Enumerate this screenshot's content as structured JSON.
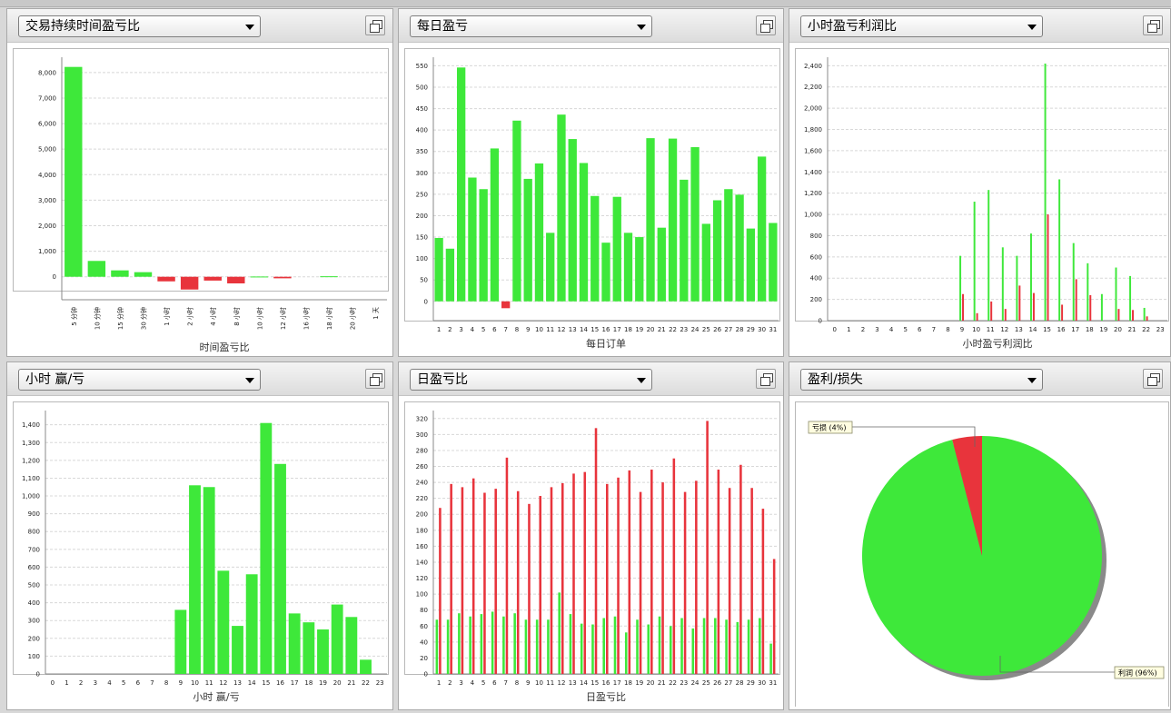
{
  "colors": {
    "profit": "#3ee83a",
    "loss": "#e8343c",
    "grid": "#d8d8d8",
    "axis": "#888888",
    "plot_border": "#b8b8b8"
  },
  "panels": {
    "p1": {
      "dropdown": "交易持续时间盈亏比"
    },
    "p2": {
      "dropdown": "每日盈亏"
    },
    "p3": {
      "dropdown": "小时盈亏利润比"
    },
    "p4": {
      "dropdown": "小时 赢/亏"
    },
    "p5": {
      "dropdown": "日盈亏比"
    },
    "p6": {
      "dropdown": "盈利/损失"
    }
  },
  "chart_data": [
    {
      "id": "duration",
      "type": "bar",
      "xlabel": "时间盈亏比",
      "ylim": [
        -900,
        8600
      ],
      "yticks": [
        0,
        1000,
        2000,
        3000,
        4000,
        5000,
        6000,
        7000,
        8000
      ],
      "categories": [
        "5 分钟",
        "10 分钟",
        "15 分钟",
        "30 分钟",
        "1 小时",
        "2 小时",
        "4 小时",
        "8 小时",
        "10 小时",
        "12 小时",
        "16 小时",
        "18 小时",
        "20 小时",
        "1 天"
      ],
      "values": [
        8220,
        620,
        250,
        180,
        -180,
        -500,
        -150,
        -260,
        10,
        -60,
        0,
        20,
        0,
        0
      ]
    },
    {
      "id": "daily",
      "type": "bar",
      "xlabel": "每日订单",
      "ylim": [
        -45,
        570
      ],
      "yticks": [
        0,
        50,
        100,
        150,
        200,
        250,
        300,
        350,
        400,
        450,
        500,
        550
      ],
      "categories": [
        "1",
        "2",
        "3",
        "4",
        "5",
        "6",
        "7",
        "8",
        "9",
        "10",
        "11",
        "12",
        "13",
        "14",
        "15",
        "16",
        "17",
        "18",
        "19",
        "20",
        "21",
        "22",
        "23",
        "24",
        "25",
        "26",
        "27",
        "28",
        "29",
        "30",
        "31"
      ],
      "values": [
        148,
        123,
        546,
        289,
        262,
        357,
        -16,
        422,
        286,
        322,
        160,
        436,
        379,
        323,
        246,
        137,
        244,
        160,
        150,
        381,
        172,
        380,
        284,
        360,
        181,
        236,
        262,
        249,
        170,
        338,
        183
      ]
    },
    {
      "id": "hourly_ratio",
      "type": "bar",
      "xlabel": "小时盈亏利润比",
      "ylim": [
        0,
        2480
      ],
      "yticks": [
        0,
        200,
        400,
        600,
        800,
        1000,
        1200,
        1400,
        1600,
        1800,
        2000,
        2200,
        2400
      ],
      "categories": [
        "0",
        "1",
        "2",
        "3",
        "4",
        "5",
        "6",
        "7",
        "8",
        "9",
        "10",
        "11",
        "12",
        "13",
        "14",
        "15",
        "16",
        "17",
        "18",
        "19",
        "20",
        "21",
        "22",
        "23"
      ],
      "series": [
        {
          "name": "",
          "color": "profit",
          "values": [
            0,
            0,
            0,
            0,
            0,
            0,
            0,
            0,
            0,
            610,
            1120,
            1230,
            690,
            610,
            820,
            2420,
            1330,
            730,
            540,
            250,
            500,
            420,
            120,
            0
          ]
        },
        {
          "name": "",
          "color": "loss",
          "values": [
            0,
            0,
            0,
            0,
            0,
            0,
            0,
            0,
            0,
            250,
            70,
            180,
            110,
            330,
            260,
            1000,
            150,
            390,
            240,
            0,
            110,
            100,
            40,
            0
          ]
        }
      ]
    },
    {
      "id": "hourly_winloss",
      "type": "bar",
      "xlabel": "小时 赢/亏",
      "ylim": [
        0,
        1480
      ],
      "yticks": [
        0,
        100,
        200,
        300,
        400,
        500,
        600,
        700,
        800,
        900,
        1000,
        1100,
        1200,
        1300,
        1400
      ],
      "categories": [
        "0",
        "1",
        "2",
        "3",
        "4",
        "5",
        "6",
        "7",
        "8",
        "9",
        "10",
        "11",
        "12",
        "13",
        "14",
        "15",
        "16",
        "17",
        "18",
        "19",
        "20",
        "21",
        "22",
        "23"
      ],
      "values": [
        0,
        0,
        0,
        0,
        0,
        0,
        0,
        0,
        0,
        360,
        1060,
        1050,
        580,
        270,
        560,
        1410,
        1180,
        340,
        290,
        250,
        390,
        320,
        80,
        0
      ]
    },
    {
      "id": "daily_ratio",
      "type": "bar",
      "xlabel": "日盈亏比",
      "ylim": [
        0,
        330
      ],
      "yticks": [
        0,
        20,
        40,
        60,
        80,
        100,
        120,
        140,
        160,
        180,
        200,
        220,
        240,
        260,
        280,
        300,
        320
      ],
      "categories": [
        "1",
        "2",
        "3",
        "4",
        "5",
        "6",
        "7",
        "8",
        "9",
        "10",
        "11",
        "12",
        "13",
        "14",
        "15",
        "16",
        "17",
        "18",
        "19",
        "20",
        "21",
        "22",
        "23",
        "24",
        "25",
        "26",
        "27",
        "28",
        "29",
        "30",
        "31"
      ],
      "series": [
        {
          "name": "",
          "color": "profit",
          "values": [
            68,
            68,
            76,
            72,
            75,
            78,
            72,
            76,
            68,
            68,
            68,
            102,
            75,
            63,
            62,
            70,
            72,
            52,
            68,
            62,
            72,
            60,
            70,
            57,
            70,
            70,
            68,
            65,
            68,
            70,
            38
          ]
        },
        {
          "name": "",
          "color": "loss",
          "values": [
            208,
            238,
            234,
            245,
            227,
            232,
            271,
            229,
            213,
            223,
            234,
            239,
            251,
            253,
            308,
            238,
            246,
            255,
            228,
            256,
            240,
            270,
            228,
            242,
            317,
            256,
            233,
            262,
            233,
            207,
            144
          ]
        }
      ]
    },
    {
      "id": "profit_loss_pie",
      "type": "pie",
      "slices": [
        {
          "label": "利润 (96%)",
          "value": 96,
          "color": "profit"
        },
        {
          "label": "亏损 (4%)",
          "value": 4,
          "color": "loss"
        }
      ]
    }
  ]
}
